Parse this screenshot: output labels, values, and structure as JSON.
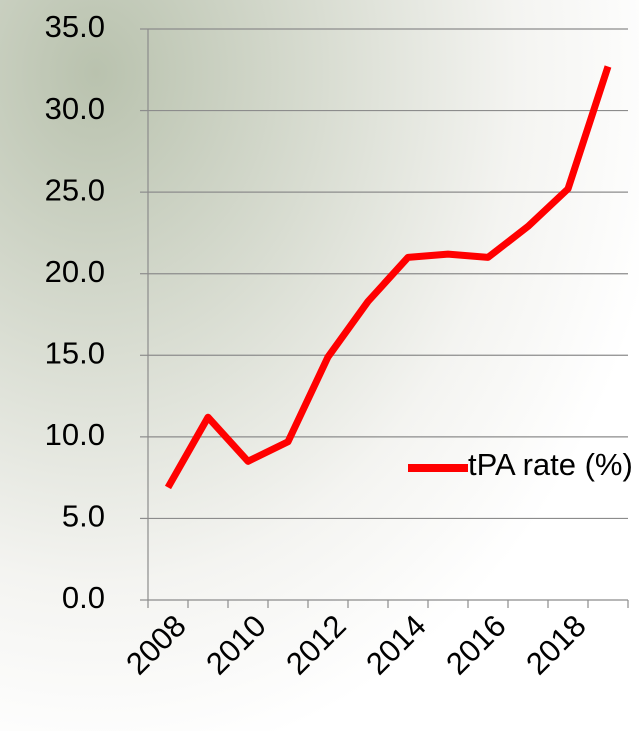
{
  "chart_data": {
    "type": "line",
    "categories": [
      "2008",
      null,
      "2010",
      null,
      "2012",
      null,
      "2014",
      null,
      "2016",
      null,
      "2018",
      null
    ],
    "series": [
      {
        "name": "tPA rate (%)",
        "color": "#ff0000",
        "values": [
          6.9,
          11.2,
          8.5,
          9.7,
          14.9,
          18.3,
          21.0,
          21.2,
          21.0,
          22.9,
          25.2,
          32.7
        ]
      }
    ],
    "ylim": [
      0,
      35
    ],
    "yticks": [
      {
        "value": 0,
        "label": "0.0"
      },
      {
        "value": 5,
        "label": "5.0"
      },
      {
        "value": 10,
        "label": "10.0"
      },
      {
        "value": 15,
        "label": "15.0"
      },
      {
        "value": 20,
        "label": "20.0"
      },
      {
        "value": 25,
        "label": "25.0"
      },
      {
        "value": 30,
        "label": "30.0"
      },
      {
        "value": 35,
        "label": "35.0"
      }
    ],
    "grid": true,
    "legend": "right"
  }
}
